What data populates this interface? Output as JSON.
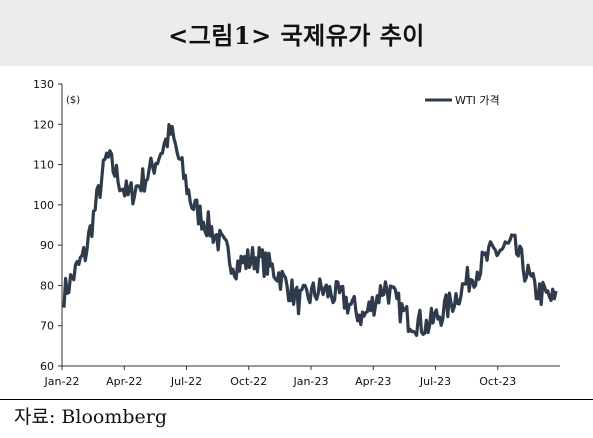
{
  "header": {
    "title": "<그림1> 국제유가 추이"
  },
  "footer": {
    "source": "자료: Bloomberg"
  },
  "chart_data": {
    "type": "line",
    "title": "",
    "unit_label": "($)",
    "xlabel": "",
    "ylabel": "",
    "ylim": [
      60,
      130
    ],
    "yticks": [
      60,
      70,
      80,
      90,
      100,
      110,
      120,
      130
    ],
    "xticks": [
      "Jan-22",
      "Apr-22",
      "Jul-22",
      "Oct-22",
      "Jan-23",
      "Apr-23",
      "Jul-23",
      "Oct-23"
    ],
    "grid": false,
    "legend": "top-right",
    "line_color": "#2f3a4a",
    "series": [
      {
        "name": "WTI 가격",
        "x": [
          "2022-01",
          "2022-02",
          "2022-03",
          "2022-04",
          "2022-05",
          "2022-06",
          "2022-07",
          "2022-08",
          "2022-09",
          "2022-10",
          "2022-11",
          "2022-12",
          "2023-01",
          "2023-02",
          "2023-03",
          "2023-04",
          "2023-05",
          "2023-06",
          "2023-07",
          "2023-08",
          "2023-09",
          "2023-10",
          "2023-11",
          "2023-12"
        ],
        "values": [
          78,
          88,
          112,
          102,
          108,
          118,
          100,
          93,
          85,
          87,
          83,
          76,
          79,
          77,
          72,
          80,
          72,
          70,
          75,
          82,
          88,
          90,
          79,
          76
        ]
      }
    ]
  }
}
